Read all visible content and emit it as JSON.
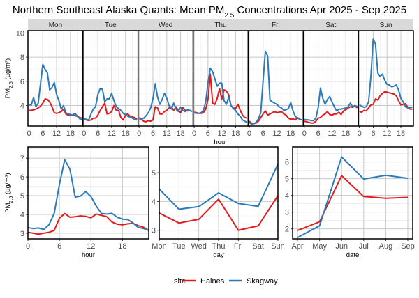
{
  "title": "Northern Southeast Alaska Quants: Mean PM",
  "title_sub": "2.5",
  "title_rest": " Concentrations Apr 2025 - Sep 2025",
  "colors": {
    "Haines": "#e31a1c",
    "Skagway": "#2b7bba"
  },
  "legend": {
    "title": "site",
    "entries": [
      "Haines",
      "Skagway"
    ]
  },
  "chart_data": [
    {
      "type": "line",
      "name": "hour-by-weekday",
      "facets": [
        "Mon",
        "Tue",
        "Wed",
        "Thu",
        "Fri",
        "Sat",
        "Sun"
      ],
      "xlabel": "hour",
      "ylabel": "PM2.5 (µg/m³)",
      "ylim": [
        2.3,
        10.2
      ],
      "xlim": [
        0,
        23
      ],
      "yticks": [
        4,
        6,
        8,
        10
      ],
      "xticks": [
        0,
        6,
        12,
        18
      ],
      "grid": true,
      "series": [
        {
          "name": "Haines",
          "values": {
            "Mon": [
              3.6,
              3.6,
              3.65,
              3.7,
              3.8,
              3.95,
              4.2,
              4.55,
              4.5,
              4.3,
              3.9,
              3.4,
              3.35,
              3.4,
              3.5,
              3.7,
              3.3,
              3.2,
              3.2,
              3.2,
              3.15,
              3.1,
              3.0,
              2.95
            ],
            "Tue": [
              2.85,
              2.8,
              2.75,
              2.8,
              2.95,
              2.95,
              3.2,
              3.6,
              3.9,
              4.2,
              3.3,
              3.35,
              3.5,
              4.0,
              3.6,
              3.6,
              3.0,
              2.8,
              3.2,
              3.3,
              3.1,
              3.05,
              3.0,
              2.85
            ],
            "Wed": [
              3.0,
              2.85,
              2.7,
              2.65,
              2.75,
              2.7,
              2.8,
              3.9,
              3.8,
              3.3,
              3.3,
              3.5,
              3.6,
              3.8,
              3.9,
              3.6,
              3.9,
              3.6,
              3.4,
              3.85,
              3.6,
              3.55,
              3.6,
              3.5
            ],
            "Thu": [
              3.45,
              3.4,
              3.35,
              3.35,
              3.4,
              3.7,
              4.5,
              6.6,
              4.2,
              4.1,
              4.6,
              5.4,
              4.5,
              5.3,
              5.2,
              4.9,
              4.0,
              3.8,
              3.75,
              4.1,
              3.6,
              3.2,
              3.0,
              2.95
            ],
            "Fri": [
              2.7,
              2.55,
              2.5,
              2.55,
              2.7,
              3.0,
              3.3,
              3.55,
              3.2,
              3.3,
              3.4,
              3.5,
              3.4,
              3.45,
              3.5,
              3.3,
              3.2,
              2.95,
              2.85,
              2.9,
              2.8,
              3.0,
              2.85,
              2.8
            ],
            "Sat": [
              2.7,
              2.65,
              2.6,
              2.55,
              2.55,
              2.7,
              2.95,
              3.0,
              3.2,
              3.3,
              3.5,
              3.25,
              3.2,
              3.3,
              3.3,
              3.45,
              3.25,
              3.55,
              3.65,
              3.8,
              3.9,
              3.85,
              3.95,
              3.8
            ],
            "Sun": [
              3.5,
              3.45,
              3.6,
              3.55,
              3.8,
              4.05,
              4.1,
              4.55,
              4.45,
              4.8,
              5.0,
              5.15,
              5.1,
              5.05,
              5.0,
              4.95,
              4.8,
              4.4,
              4.05,
              4.1,
              4.15,
              3.85,
              3.7,
              3.7
            ]
          }
        },
        {
          "name": "Skagway",
          "values": {
            "Mon": [
              4.05,
              4.05,
              4.65,
              3.9,
              4.2,
              5.8,
              7.4,
              7.0,
              6.7,
              5.3,
              5.5,
              5.9,
              4.9,
              4.4,
              3.7,
              4.0,
              3.4,
              3.3,
              3.25,
              3.2,
              3.35,
              3.1,
              2.9,
              2.85
            ],
            "Tue": [
              2.9,
              2.85,
              2.8,
              3.3,
              3.7,
              3.9,
              4.9,
              5.4,
              5.35,
              4.3,
              4.55,
              4.55,
              5.0,
              4.4,
              3.9,
              3.75,
              3.6,
              3.35,
              3.25,
              3.1,
              3.05,
              2.95,
              2.85,
              2.8
            ],
            "Wed": [
              2.8,
              2.85,
              2.95,
              3.15,
              3.4,
              3.8,
              4.55,
              5.8,
              4.7,
              4.1,
              4.5,
              5.0,
              4.6,
              4.0,
              3.7,
              4.2,
              3.7,
              3.5,
              3.85,
              3.6,
              3.5,
              3.65,
              3.6,
              3.5
            ],
            "Thu": [
              3.4,
              3.35,
              3.35,
              3.4,
              3.6,
              4.3,
              5.9,
              7.1,
              6.8,
              6.2,
              5.6,
              5.85,
              5.85,
              4.4,
              4.1,
              4.7,
              4.0,
              3.75,
              3.6,
              3.3,
              3.1,
              2.8,
              2.7,
              2.6
            ],
            "Fri": [
              2.6,
              2.45,
              2.5,
              2.6,
              2.9,
              3.4,
              6.0,
              8.5,
              8.1,
              4.45,
              4.3,
              4.2,
              4.1,
              3.9,
              3.8,
              3.6,
              3.65,
              3.75,
              4.25,
              3.55,
              3.1,
              2.95,
              2.85,
              2.8
            ],
            "Sat": [
              2.85,
              2.8,
              2.8,
              2.75,
              2.75,
              2.95,
              3.8,
              5.45,
              4.6,
              4.1,
              4.5,
              4.75,
              4.3,
              3.9,
              3.55,
              3.7,
              3.7,
              3.75,
              3.8,
              3.9,
              4.2,
              3.9,
              4.0,
              3.9
            ],
            "Sun": [
              4.05,
              3.95,
              3.85,
              3.9,
              4.3,
              6.4,
              9.5,
              9.1,
              6.7,
              6.4,
              6.6,
              6.1,
              5.75,
              5.7,
              5.55,
              5.6,
              5.7,
              5.3,
              4.6,
              4.3,
              3.9,
              3.8,
              3.85,
              3.85
            ]
          }
        }
      ]
    },
    {
      "type": "line",
      "name": "hour",
      "xlabel": "hour",
      "ylabel": "PM2.5 (µg/m³)",
      "ylim": [
        2.7,
        7.6
      ],
      "xlim": [
        0,
        23
      ],
      "yticks": [
        3,
        4,
        5,
        6,
        7
      ],
      "xticks": [
        0,
        6,
        12,
        18
      ],
      "grid": true,
      "x": [
        0,
        1,
        2,
        3,
        4,
        5,
        6,
        7,
        8,
        9,
        10,
        11,
        12,
        13,
        14,
        15,
        16,
        17,
        18,
        19,
        20,
        21,
        22,
        23
      ],
      "series": [
        {
          "name": "Haines",
          "values": [
            3.05,
            3.0,
            2.95,
            3.0,
            3.05,
            3.15,
            3.8,
            4.05,
            3.85,
            3.88,
            3.92,
            3.9,
            3.82,
            4.02,
            3.95,
            3.88,
            3.6,
            3.48,
            3.45,
            3.5,
            3.52,
            3.4,
            3.32,
            3.15
          ]
        },
        {
          "name": "Skagway",
          "values": [
            3.3,
            3.25,
            3.28,
            3.2,
            3.45,
            4.05,
            5.6,
            6.92,
            6.4,
            4.92,
            4.98,
            5.22,
            4.95,
            4.45,
            4.05,
            4.02,
            4.06,
            3.85,
            3.75,
            3.73,
            3.55,
            3.3,
            3.25,
            3.15
          ]
        }
      ]
    },
    {
      "type": "line",
      "name": "day",
      "xlabel": "day",
      "ylabel": "",
      "ylim": [
        2.7,
        5.9
      ],
      "yticks": [
        3,
        4,
        5
      ],
      "categories": [
        "Mon",
        "Tue",
        "Wed",
        "Thu",
        "Fri",
        "Sat",
        "Sun"
      ],
      "grid": true,
      "series": [
        {
          "name": "Haines",
          "values": [
            3.6,
            3.25,
            3.38,
            4.08,
            3.0,
            3.15,
            4.2
          ]
        },
        {
          "name": "Skagway",
          "values": [
            4.43,
            3.73,
            3.82,
            4.3,
            3.93,
            3.83,
            5.3
          ]
        }
      ]
    },
    {
      "type": "line",
      "name": "date",
      "xlabel": "date",
      "ylabel": "",
      "ylim": [
        1.4,
        6.9
      ],
      "yticks": [
        2,
        3,
        4,
        5,
        6
      ],
      "categories": [
        "Apr",
        "May",
        "Jun",
        "Jul",
        "Aug",
        "Sep"
      ],
      "grid": true,
      "series": [
        {
          "name": "Haines",
          "values": [
            1.9,
            2.42,
            5.18,
            3.93,
            3.83,
            3.88
          ]
        },
        {
          "name": "Skagway",
          "values": [
            1.48,
            2.18,
            6.3,
            4.98,
            5.2,
            5.02
          ]
        }
      ]
    }
  ]
}
